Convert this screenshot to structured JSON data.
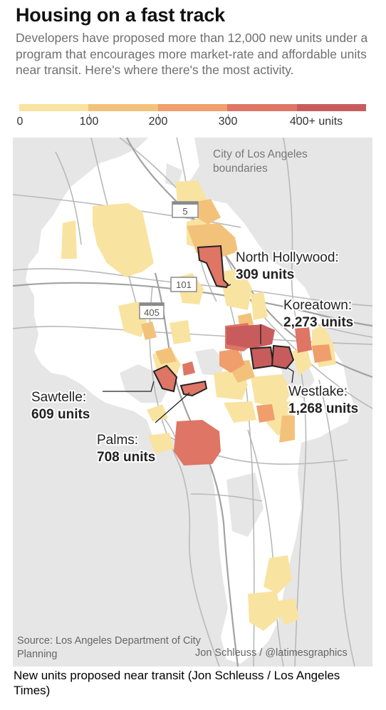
{
  "header": {
    "title": "Housing on a fast track",
    "subtitle": "Developers have proposed more than 12,000 new units under a program that encourages more market-rate and affordable units near transit. Here's where there's the most activity."
  },
  "legend": {
    "colors": [
      "#f9e3a1",
      "#f3c27a",
      "#ef9e6c",
      "#de7565",
      "#c85c5c"
    ],
    "ticks": [
      "0",
      "100",
      "200",
      "300",
      "400+ units"
    ]
  },
  "map": {
    "boundary_label": "City of Los Angeles\nboundaries",
    "highways": [
      "5",
      "101",
      "405"
    ],
    "neighborhoods": [
      {
        "name": "North Hollywood:",
        "units": "309 units"
      },
      {
        "name": "Koreatown:",
        "units": "2,273 units"
      },
      {
        "name": "Westlake:",
        "units": "1,268 units"
      },
      {
        "name": "Sawtelle:",
        "units": "609 units"
      },
      {
        "name": "Palms:",
        "units": "708 units"
      }
    ]
  },
  "footer": {
    "source": "Source: Los Angeles Department of City Planning",
    "credit": "Jon Schleuss / @latimesgraphics",
    "caption": "New units proposed near transit (Jon Schleuss / Los Angeles Times)"
  }
}
